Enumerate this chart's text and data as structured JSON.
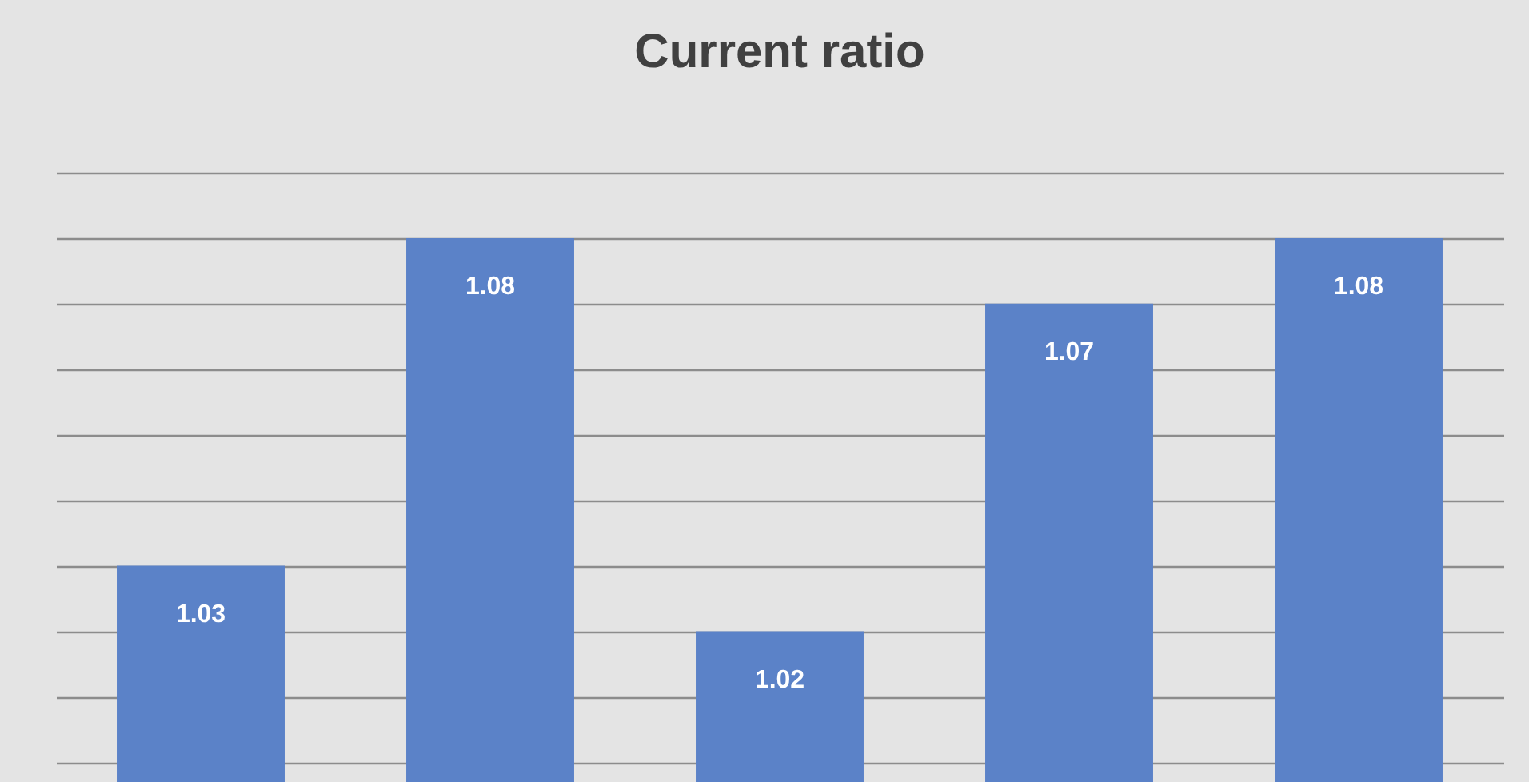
{
  "chart_data": {
    "type": "bar",
    "title": "Current ratio",
    "categories": [
      null,
      null,
      null,
      null,
      null
    ],
    "values": [
      1.03,
      1.08,
      1.02,
      1.07,
      1.08
    ],
    "color": "#5b82c8",
    "data_labels": true,
    "ylim": [
      0.997,
      1.09
    ],
    "yticks": [
      {
        "value": 1.0,
        "label": null
      },
      {
        "value": 1.01,
        "label": null
      },
      {
        "value": 1.02,
        "label": null
      },
      {
        "value": 1.03,
        "label": null
      },
      {
        "value": 1.04,
        "label": null
      },
      {
        "value": 1.05,
        "label": null
      },
      {
        "value": 1.06,
        "label": null
      },
      {
        "value": 1.07,
        "label": null
      },
      {
        "value": 1.08,
        "label": null
      },
      {
        "value": 1.09,
        "label": null
      }
    ],
    "tick_labels": false,
    "grid": "y"
  }
}
